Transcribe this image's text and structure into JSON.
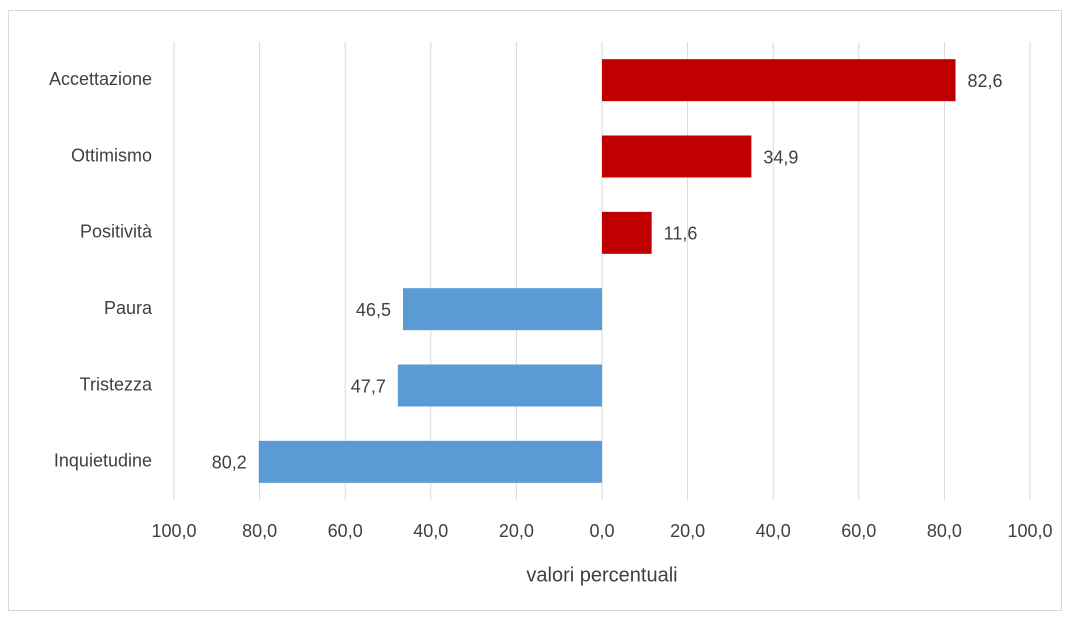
{
  "chart_data": {
    "type": "bar",
    "orientation": "horizontal",
    "categories": [
      "Accettazione",
      "Ottimismo",
      "Positività",
      "Paura",
      "Tristezza",
      "Inquietudine"
    ],
    "values": [
      82.6,
      34.9,
      11.6,
      -46.5,
      -47.7,
      -80.2
    ],
    "value_labels": [
      "82,6",
      "34,9",
      "11,6",
      "46,5",
      "47,7",
      "80,2"
    ],
    "colors": [
      "#c00000",
      "#c00000",
      "#c00000",
      "#5b9bd5",
      "#5b9bd5",
      "#5b9bd5"
    ],
    "xlabel": "valori percentuali",
    "xlim": [
      -100,
      100
    ],
    "xticks": [
      {
        "value": -100,
        "label": "100,0"
      },
      {
        "value": -80,
        "label": "80,0"
      },
      {
        "value": -60,
        "label": "60,0"
      },
      {
        "value": -40,
        "label": "40,0"
      },
      {
        "value": -20,
        "label": "20,0"
      },
      {
        "value": 0,
        "label": "0,0"
      },
      {
        "value": 20,
        "label": "20,0"
      },
      {
        "value": 40,
        "label": "40,0"
      },
      {
        "value": 60,
        "label": "60,0"
      },
      {
        "value": 80,
        "label": "80,0"
      },
      {
        "value": 100,
        "label": "100,0"
      }
    ],
    "grid": true
  }
}
